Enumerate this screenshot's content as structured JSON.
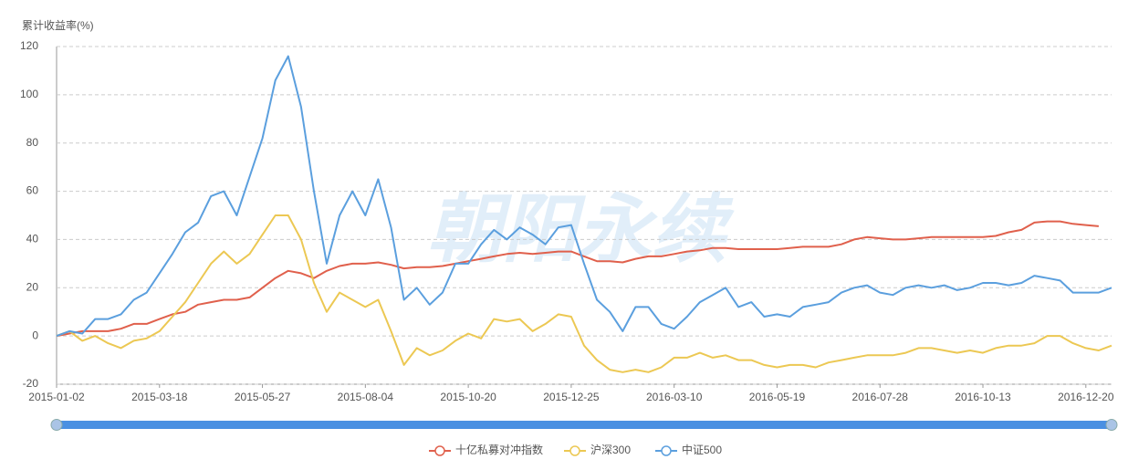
{
  "chart_data": {
    "type": "line",
    "y_axis_label": "累计收益率(%)",
    "watermark": "朝阳永续",
    "categories": [
      "2015-01-02",
      null,
      null,
      null,
      null,
      null,
      null,
      null,
      "2015-03-18",
      null,
      null,
      null,
      null,
      null,
      null,
      null,
      "2015-05-27",
      null,
      null,
      null,
      null,
      null,
      null,
      null,
      "2015-08-04",
      null,
      null,
      null,
      null,
      null,
      null,
      null,
      "2015-10-20",
      null,
      null,
      null,
      null,
      null,
      null,
      null,
      "2015-12-25",
      null,
      null,
      null,
      null,
      null,
      null,
      null,
      "2016-03-10",
      null,
      null,
      null,
      null,
      null,
      null,
      null,
      "2016-05-19",
      null,
      null,
      null,
      null,
      null,
      null,
      null,
      "2016-07-28",
      null,
      null,
      null,
      null,
      null,
      null,
      null,
      "2016-10-13",
      null,
      null,
      null,
      null,
      null,
      null,
      null,
      "2016-12-20",
      null,
      null
    ],
    "series": [
      {
        "name": "十亿私募对冲指数",
        "color": "#e0604c",
        "values": [
          0,
          1,
          2,
          2,
          2,
          3,
          5,
          5,
          7,
          9,
          10,
          13,
          14,
          15,
          15,
          16,
          20,
          24,
          27,
          26,
          24,
          27,
          29,
          30,
          30,
          30.5,
          29.5,
          28,
          28.5,
          28.5,
          29,
          30,
          31,
          32,
          33,
          34,
          34.5,
          34,
          34.5,
          35,
          35,
          33,
          31,
          31,
          30.5,
          32,
          33,
          33,
          34,
          35,
          35.5,
          36.5,
          36.5,
          36,
          36,
          36,
          36,
          36.5,
          37,
          37,
          37,
          38,
          40,
          41,
          40.5,
          40,
          40,
          40.5,
          41,
          41,
          41,
          41,
          41,
          41.5,
          43,
          44,
          47,
          47.5,
          47.5,
          46.5,
          46,
          45.5,
          null
        ]
      },
      {
        "name": "沪深300",
        "color": "#ecc853",
        "values": [
          0,
          2,
          -2,
          0,
          -3,
          -5,
          -2,
          -1,
          2,
          8,
          14,
          22,
          30,
          35,
          30,
          34,
          42,
          50,
          50,
          40,
          22,
          10,
          18,
          15,
          12,
          15,
          2,
          -12,
          -5,
          -8,
          -6,
          -2,
          1,
          -1,
          7,
          6,
          7,
          2,
          5,
          9,
          8,
          -4,
          -10,
          -14,
          -15,
          -14,
          -15,
          -13,
          -9,
          -9,
          -7,
          -9,
          -8,
          -10,
          -10,
          -12,
          -13,
          -12,
          -12,
          -13,
          -11,
          -10,
          -9,
          -8,
          -8,
          -8,
          -7,
          -5,
          -5,
          -6,
          -7,
          -6,
          -7,
          -5,
          -4,
          -4,
          -3,
          0,
          0,
          -3,
          -5,
          -6,
          -4
        ]
      },
      {
        "name": "中证500",
        "color": "#5b9fde",
        "values": [
          0,
          2,
          1,
          7,
          7,
          9,
          15,
          18,
          26,
          34,
          43,
          47,
          58,
          60,
          50,
          66,
          82,
          106,
          116,
          95,
          60,
          30,
          50,
          60,
          50,
          65,
          45,
          15,
          20,
          13,
          18,
          30,
          30,
          38,
          44,
          40,
          45,
          42,
          38,
          45,
          46,
          30,
          15,
          10,
          2,
          12,
          12,
          5,
          3,
          8,
          14,
          17,
          20,
          12,
          14,
          8,
          9,
          8,
          12,
          13,
          14,
          18,
          20,
          21,
          18,
          17,
          20,
          21,
          20,
          21,
          19,
          20,
          22,
          22,
          21,
          22,
          25,
          24,
          23,
          18,
          18,
          18,
          20
        ]
      }
    ],
    "ylim": [
      -20,
      120
    ],
    "yticks": [
      -20,
      0,
      20,
      40,
      60,
      80,
      100,
      120
    ],
    "grid": true
  }
}
